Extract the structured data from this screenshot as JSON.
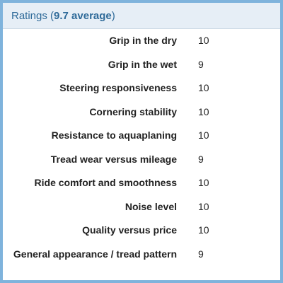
{
  "header": {
    "prefix": "Ratings (",
    "average": "9.7 average",
    "suffix": ")"
  },
  "ratings": [
    {
      "label": "Grip in the dry",
      "value": "10"
    },
    {
      "label": "Grip in the wet",
      "value": "9"
    },
    {
      "label": "Steering responsiveness",
      "value": "10"
    },
    {
      "label": "Cornering stability",
      "value": "10"
    },
    {
      "label": "Resistance to aquaplaning",
      "value": "10"
    },
    {
      "label": "Tread wear versus mileage",
      "value": "9"
    },
    {
      "label": "Ride comfort and smoothness",
      "value": "10"
    },
    {
      "label": "Noise level",
      "value": "10"
    },
    {
      "label": "Quality versus price",
      "value": "10"
    },
    {
      "label": "General appearance / tread pattern",
      "value": "9"
    }
  ],
  "colors": {
    "frame_border": "#7fb3dc",
    "header_background": "#e6eef6",
    "header_text": "#2e6a99"
  }
}
